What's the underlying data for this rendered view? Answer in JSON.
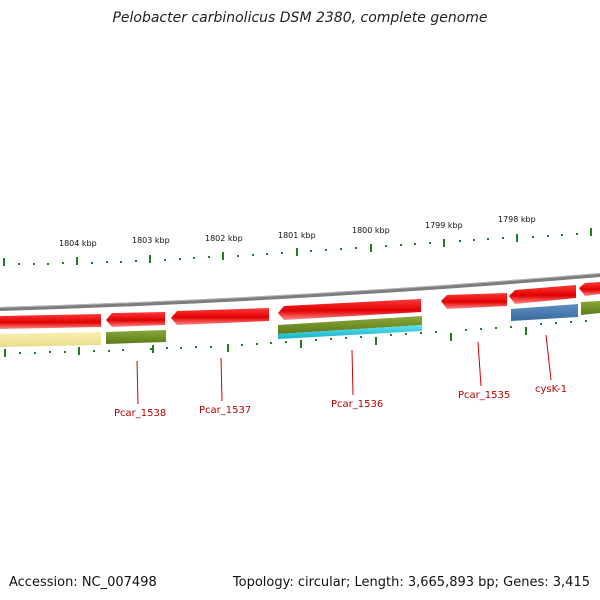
{
  "title": "Pelobacter carbinolicus DSM 2380, complete genome",
  "footer": {
    "accession": "Accession: NC_007498",
    "summary": "Topology: circular; Length: 3,665,893 bp; Genes: 3,415"
  },
  "scale_labels": [
    "1804 kbp",
    "1803 kbp",
    "1802 kbp",
    "1801 kbp",
    "1800 kbp",
    "1799 kbp",
    "1798 kbp"
  ],
  "gene_labels": [
    "Pcar_1538",
    "Pcar_1537",
    "Pcar_1536",
    "Pcar_1535",
    "cysK-1"
  ],
  "colors": {
    "backbone": "#808080",
    "gene_red": "#ee0000",
    "tick_green": "#1e7d1e",
    "label_red": "#c00000",
    "olive": "#6b8e23",
    "yellow": "#f3e9a0",
    "cyan": "#22c8dd",
    "steel_blue": "#4a7fb5"
  }
}
